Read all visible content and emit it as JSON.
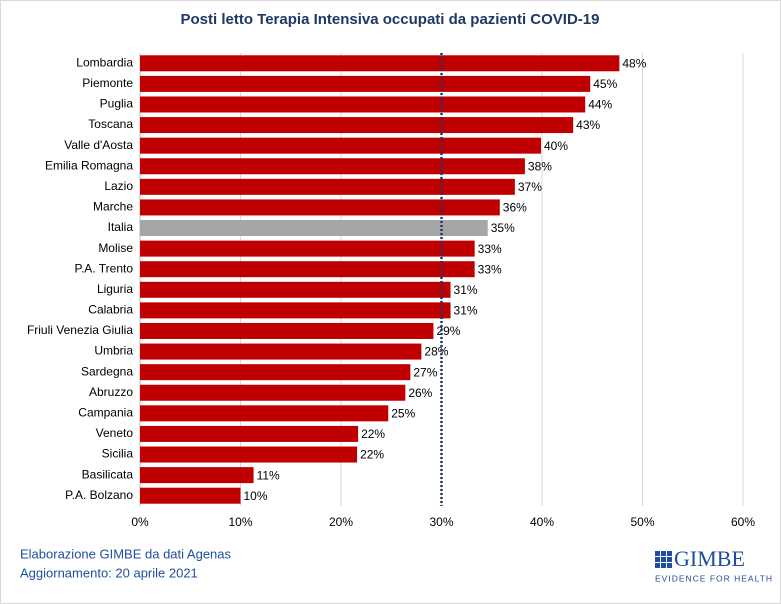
{
  "chart_data": {
    "type": "barh",
    "title": "Posti letto Terapia  Intensiva occupati da pazienti COVID-19",
    "categories": [
      "Lombardia",
      "Piemonte",
      "Puglia",
      "Toscana",
      "Valle d'Aosta",
      "Emilia Romagna",
      "Lazio",
      "Marche",
      "Italia",
      "Molise",
      "P.A. Trento",
      "Liguria",
      "Calabria",
      "Friuli Venezia Giulia",
      "Umbria",
      "Sardegna",
      "Abruzzo",
      "Campania",
      "Veneto",
      "Sicilia",
      "Basilicata",
      "P.A. Bolzano"
    ],
    "values": [
      47.7,
      44.8,
      44.3,
      43.1,
      39.9,
      38.3,
      37.3,
      35.8,
      34.6,
      33.3,
      33.3,
      30.9,
      30.9,
      29.2,
      28.0,
      26.9,
      26.4,
      24.7,
      21.7,
      21.6,
      11.3,
      10.0
    ],
    "value_labels": [
      "48%",
      "45%",
      "44%",
      "43%",
      "40%",
      "38%",
      "37%",
      "36%",
      "35%",
      "33%",
      "33%",
      "31%",
      "31%",
      "29%",
      "28%",
      "27%",
      "26%",
      "25%",
      "22%",
      "22%",
      "11%",
      "10%"
    ],
    "colors": [
      "#c00000",
      "#c00000",
      "#c00000",
      "#c00000",
      "#c00000",
      "#c00000",
      "#c00000",
      "#c00000",
      "#a6a6a6",
      "#c00000",
      "#c00000",
      "#c00000",
      "#c00000",
      "#c00000",
      "#c00000",
      "#c00000",
      "#c00000",
      "#c00000",
      "#c00000",
      "#c00000",
      "#c00000",
      "#c00000"
    ],
    "xlim": [
      0,
      60
    ],
    "xticks": [
      {
        "value": 0,
        "label": "0%"
      },
      {
        "value": 10,
        "label": "10%"
      },
      {
        "value": 20,
        "label": "20%"
      },
      {
        "value": 30,
        "label": "30%"
      },
      {
        "value": 40,
        "label": "40%"
      },
      {
        "value": 50,
        "label": "50%"
      },
      {
        "value": 60,
        "label": "60%"
      }
    ],
    "grid": true,
    "threshold": 30,
    "source": "Elaborazione GIMBE da dati Agenas",
    "note": "Aggiornamento: 20 aprile 2021",
    "logo": {
      "name": "GIMBE",
      "tagline": "EVIDENCE FOR HEALTH"
    }
  }
}
